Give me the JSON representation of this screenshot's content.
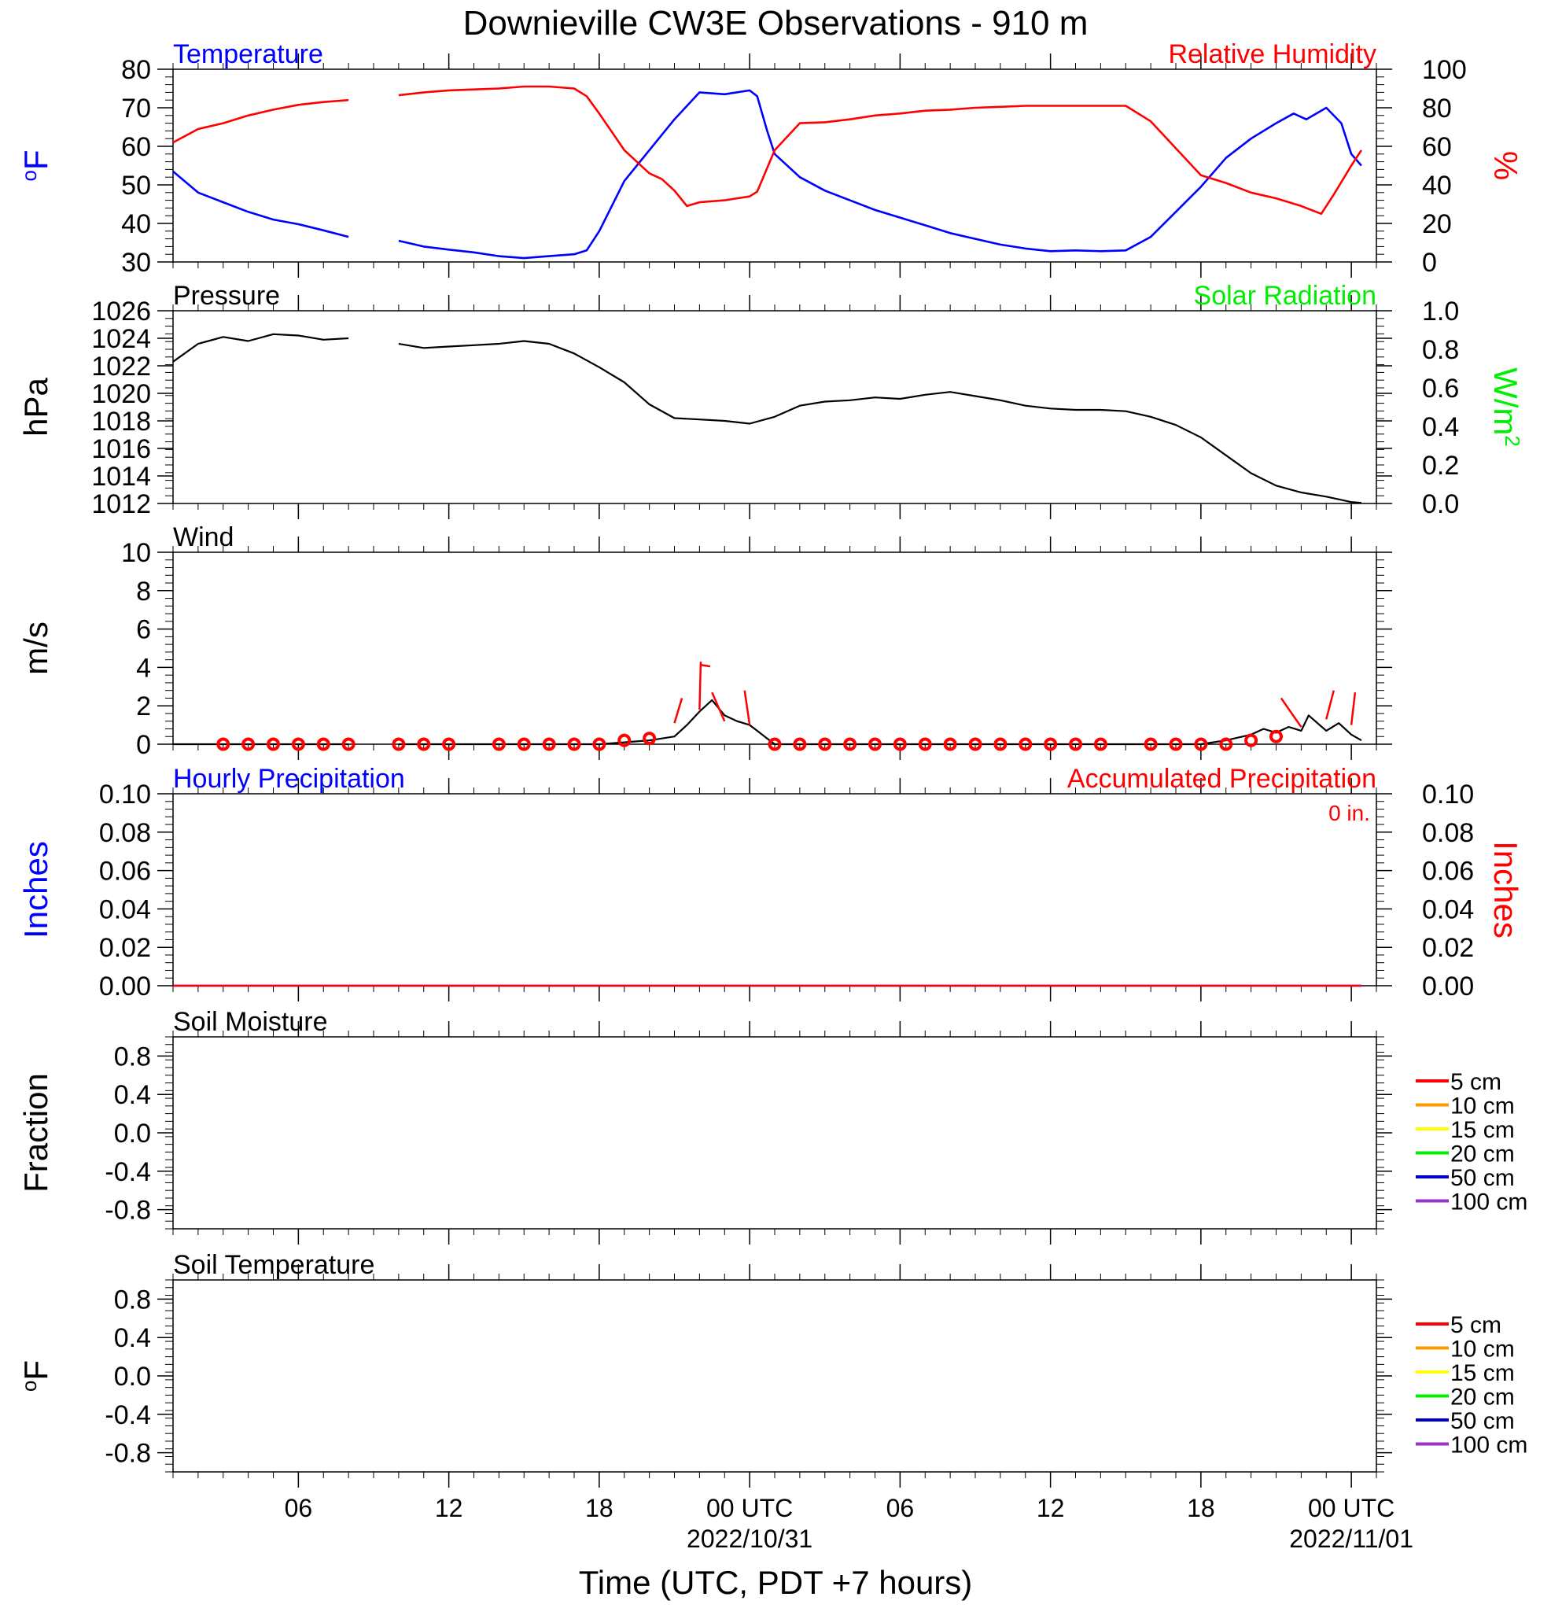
{
  "title": "Downieville CW3E Observations - 910 m",
  "xlabel": "Time (UTC, PDT +7 hours)",
  "colors": {
    "blue": "#0000ff",
    "red": "#ff0000",
    "green": "#00ee00",
    "black": "#000000",
    "soil": [
      "#ff0000",
      "#ff9900",
      "#ffff00",
      "#00ee00",
      "#0000cc",
      "#9933cc"
    ]
  },
  "x_axis": {
    "range_hours": [
      0,
      48
    ],
    "ticks": [
      {
        "h": 5,
        "label": "06",
        "date": ""
      },
      {
        "h": 11,
        "label": "12",
        "date": ""
      },
      {
        "h": 17,
        "label": "18",
        "date": ""
      },
      {
        "h": 23,
        "label": "00 UTC",
        "date": "2022/10/31"
      },
      {
        "h": 29,
        "label": "06",
        "date": ""
      },
      {
        "h": 35,
        "label": "12",
        "date": ""
      },
      {
        "h": 41,
        "label": "18",
        "date": ""
      },
      {
        "h": 47,
        "label": "00 UTC",
        "date": "2022/11/01"
      }
    ]
  },
  "chart_data": [
    {
      "id": "temp-rh",
      "type": "line",
      "left_title": "Temperature",
      "right_title": "Relative Humidity",
      "left_ylabel": "oF",
      "right_ylabel": "%",
      "left_ylim": [
        30,
        80
      ],
      "left_ticks": [
        "30",
        "40",
        "50",
        "60",
        "70",
        "80"
      ],
      "right_ylim": [
        0,
        100
      ],
      "right_ticks": [
        "0",
        "20",
        "40",
        "60",
        "80",
        "100"
      ],
      "series": [
        {
          "axis": "left",
          "color": "blue",
          "x": [
            0,
            1,
            2,
            3,
            4,
            5,
            6,
            7,
            8,
            9,
            10,
            11,
            12,
            13,
            14,
            15,
            16,
            16.5,
            17,
            18,
            19,
            20,
            21,
            22,
            23,
            23.3,
            23.7,
            24,
            25,
            26,
            27,
            28,
            29,
            30,
            31,
            32,
            33,
            34,
            35,
            36,
            37,
            38,
            39,
            40,
            41,
            42,
            43,
            44,
            44.7,
            45.2,
            46,
            46.6,
            47,
            47.4
          ],
          "y": [
            53.5,
            48,
            45.5,
            43,
            41,
            39.8,
            38.2,
            36.5,
            null,
            35.5,
            34,
            33.2,
            32.5,
            31.5,
            31,
            31.5,
            32,
            33,
            38,
            51,
            59,
            67,
            74,
            73.5,
            74.5,
            73,
            64,
            58,
            52,
            48.5,
            46,
            43.5,
            41.5,
            39.5,
            37.5,
            36,
            34.5,
            33.5,
            32.8,
            33,
            32.8,
            33,
            36.5,
            43,
            49.5,
            57,
            62,
            66,
            68.5,
            67,
            70,
            66,
            58,
            55
          ]
        },
        {
          "axis": "right",
          "color": "red",
          "x": [
            0,
            1,
            2,
            3,
            4,
            5,
            6,
            7,
            8,
            9,
            10,
            11,
            12,
            13,
            14,
            15,
            16,
            16.5,
            17,
            18,
            19,
            19.5,
            20,
            20.5,
            21,
            22,
            22.5,
            23,
            23.3,
            24,
            25,
            26,
            27,
            28,
            29,
            30,
            31,
            32,
            33,
            34,
            35,
            36,
            37,
            38,
            39,
            40,
            41,
            42,
            43,
            44,
            45,
            45.8,
            46.3,
            47,
            47.4
          ],
          "y": [
            62,
            69,
            72,
            76,
            79,
            81.5,
            83,
            84,
            null,
            86.5,
            88,
            89,
            89.5,
            90,
            91,
            91,
            90,
            86,
            77,
            58,
            46,
            43,
            37,
            29,
            31,
            32,
            33,
            34,
            36.5,
            58,
            72,
            72.5,
            74,
            76,
            77,
            78.5,
            79,
            80,
            80.5,
            81,
            81,
            81,
            81,
            81,
            73,
            59,
            45,
            41,
            36,
            33,
            29,
            25,
            35,
            50,
            58
          ]
        }
      ]
    },
    {
      "id": "pressure",
      "type": "line",
      "left_title": "Pressure",
      "right_title": "Solar Radiation",
      "left_ylabel": "hPa",
      "right_ylabel": "W/m2",
      "left_ylim": [
        1012,
        1026
      ],
      "left_ticks": [
        "1012",
        "1014",
        "1016",
        "1018",
        "1020",
        "1022",
        "1024",
        "1026"
      ],
      "right_ylim": [
        0,
        1
      ],
      "right_ticks": [
        "0.0",
        "0.2",
        "0.4",
        "0.6",
        "0.8",
        "1.0"
      ],
      "series": [
        {
          "axis": "left",
          "color": "black",
          "x": [
            0,
            1,
            2,
            3,
            4,
            5,
            6,
            7,
            8,
            9,
            10,
            11,
            12,
            13,
            14,
            15,
            16,
            17,
            18,
            19,
            20,
            21,
            22,
            23,
            24,
            25,
            26,
            27,
            28,
            29,
            30,
            31,
            32,
            33,
            34,
            35,
            36,
            37,
            38,
            39,
            40,
            41,
            42,
            43,
            44,
            45,
            46,
            47,
            47.4
          ],
          "y": [
            1022.3,
            1023.6,
            1024.1,
            1023.8,
            1024.3,
            1024.2,
            1023.9,
            1024,
            null,
            1023.6,
            1023.3,
            1023.4,
            1023.5,
            1023.6,
            1023.8,
            1023.6,
            1022.9,
            1021.9,
            1020.8,
            1019.2,
            1018.2,
            1018.1,
            1018,
            1017.8,
            1018.3,
            1019.1,
            1019.4,
            1019.5,
            1019.7,
            1019.6,
            1019.9,
            1020.1,
            1019.8,
            1019.5,
            1019.1,
            1018.9,
            1018.8,
            1018.8,
            1018.7,
            1018.3,
            1017.7,
            1016.8,
            1015.5,
            1014.2,
            1013.3,
            1012.8,
            1012.5,
            1012.1,
            1012.05
          ]
        }
      ]
    },
    {
      "id": "wind",
      "type": "line",
      "left_title": "Wind",
      "left_ylabel": "m/s",
      "left_ylim": [
        0,
        10
      ],
      "left_ticks": [
        "0",
        "2",
        "4",
        "6",
        "8",
        "10"
      ],
      "series": [
        {
          "axis": "left",
          "color": "black",
          "x": [
            0,
            1,
            2,
            3,
            4,
            5,
            6,
            7,
            8,
            9,
            10,
            11,
            12,
            13,
            14,
            15,
            16,
            17,
            18,
            19,
            19.5,
            20,
            20.5,
            21,
            21.5,
            22,
            22.5,
            23,
            23.3,
            23.7,
            24,
            25,
            26,
            27,
            28,
            29,
            30,
            31,
            32,
            33,
            34,
            35,
            36,
            37,
            38,
            39,
            40,
            41,
            42,
            43,
            43.5,
            44,
            44.5,
            45,
            45.3,
            46,
            46.5,
            47,
            47.4
          ],
          "y": [
            0,
            0,
            0,
            0,
            0,
            0,
            0,
            0,
            null,
            0,
            0,
            0,
            0,
            0,
            0,
            0,
            0,
            0,
            0.1,
            0.2,
            0.3,
            0.4,
            1,
            1.7,
            2.3,
            1.5,
            1.2,
            1,
            0.7,
            0.3,
            0,
            0,
            0,
            0,
            0,
            0,
            0,
            0,
            0,
            0,
            0,
            0,
            0,
            0,
            0,
            0,
            0,
            0,
            0.2,
            0.5,
            0.8,
            0.6,
            0.9,
            0.7,
            1.5,
            0.7,
            1.1,
            0.5,
            0.2
          ]
        }
      ],
      "calm_circles_h": [
        2,
        3,
        4,
        5,
        6,
        7,
        9,
        10,
        11,
        13,
        14,
        15,
        16,
        17,
        18,
        19,
        24,
        25,
        26,
        27,
        28,
        29,
        30,
        31,
        32,
        33,
        34,
        35,
        36,
        37,
        39,
        40,
        41,
        42,
        43,
        44
      ],
      "calm_circle_values": [
        0,
        0,
        0,
        0,
        0,
        0,
        0,
        0,
        0,
        0,
        0,
        0,
        0,
        0,
        0.2,
        0.3,
        0,
        0,
        0,
        0,
        0,
        0,
        0,
        0,
        0,
        0,
        0,
        0,
        0,
        0,
        0,
        0,
        0,
        0,
        0.2,
        0.4
      ],
      "barbs": [
        {
          "h": 20,
          "y_from": 1.1,
          "y_to": 2.4,
          "dx": 0.3
        },
        {
          "h": 21,
          "y_from": 1.8,
          "y_to": 4.3,
          "dx": 0.05,
          "flag": true
        },
        {
          "h": 22,
          "y_from": 1.2,
          "y_to": 2.7,
          "dx": -0.5
        },
        {
          "h": 23,
          "y_from": 1.0,
          "y_to": 2.8,
          "dx": -0.2
        },
        {
          "h": 45,
          "y_from": 0.9,
          "y_to": 2.4,
          "dx": -0.8
        },
        {
          "h": 46,
          "y_from": 1.3,
          "y_to": 2.8,
          "dx": 0.3
        },
        {
          "h": 47,
          "y_from": 1.0,
          "y_to": 2.7,
          "dx": 0.15
        }
      ]
    },
    {
      "id": "precip",
      "type": "line",
      "left_title": "Hourly Precipitation",
      "right_title": "Accumulated Precipitation",
      "annotation": "0 in.",
      "left_ylabel": "Inches",
      "right_ylabel": "Inches",
      "left_ylim": [
        0,
        0.1
      ],
      "left_ticks": [
        "0.00",
        "0.02",
        "0.04",
        "0.06",
        "0.08",
        "0.10"
      ],
      "right_ylim": [
        0,
        0.1
      ],
      "right_ticks": [
        "0.00",
        "0.02",
        "0.04",
        "0.06",
        "0.08",
        "0.10"
      ],
      "series": [
        {
          "axis": "left",
          "color": "blue",
          "x": [
            0,
            47.4
          ],
          "y": [
            0,
            0
          ]
        },
        {
          "axis": "right",
          "color": "red",
          "x": [
            0,
            47.4
          ],
          "y": [
            0,
            0
          ]
        }
      ]
    },
    {
      "id": "soil-moisture",
      "type": "line",
      "left_title": "Soil Moisture",
      "left_ylabel": "Fraction",
      "left_ylim": [
        -1,
        1
      ],
      "left_ticks": [
        "-0.8",
        "-0.4",
        "0.0",
        "0.4",
        "0.8"
      ],
      "legend": [
        "5 cm",
        "10 cm",
        "15 cm",
        "20 cm",
        "50 cm",
        "100 cm"
      ],
      "series": []
    },
    {
      "id": "soil-temp",
      "type": "line",
      "left_title": "Soil Temperature",
      "left_ylabel": "oF",
      "left_ylim": [
        -1,
        1
      ],
      "left_ticks": [
        "-0.8",
        "-0.4",
        "0.0",
        "0.4",
        "0.8"
      ],
      "legend": [
        "5 cm",
        "10 cm",
        "15 cm",
        "20 cm",
        "50 cm",
        "100 cm"
      ],
      "series": []
    }
  ]
}
